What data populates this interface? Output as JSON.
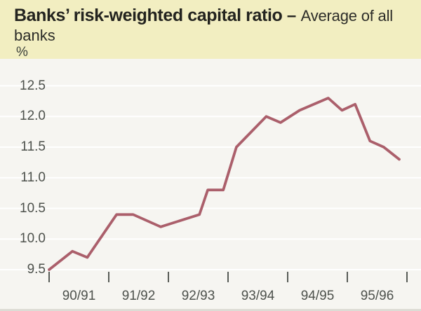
{
  "header": {
    "title_bold": "Banks’ risk-weighted capital ratio",
    "dash": "–",
    "subtitle": "Average of all",
    "title_line2": "banks",
    "unit_label": "%"
  },
  "colors": {
    "header_bg": "#f2eec1",
    "chart_bg": "#f6f5f1",
    "gridline": "#ffffff",
    "series_line": "#ab5f6b",
    "tick_mark": "#585c57",
    "axis_text": "#4d514c",
    "title_text": "#23231f"
  },
  "chart_data": {
    "type": "line",
    "title": "Banks’ risk-weighted capital ratio – Average of all banks",
    "unit": "%",
    "ylim": [
      9.5,
      12.5
    ],
    "y_ticks": [
      "12.5",
      "12.0",
      "11.5",
      "11.0",
      "10.5",
      "10.0",
      "9.5"
    ],
    "y_tick_values": [
      12.5,
      12.0,
      11.5,
      11.0,
      10.5,
      10.0,
      9.5
    ],
    "x_tick_labels": [
      "90/91",
      "91/92",
      "92/93",
      "93/94",
      "94/95",
      "95/96"
    ],
    "x_year_boundaries": 7,
    "grid": "horizontal white gridlines every 0.5, no axis frame",
    "legend": "none",
    "series": [
      {
        "name": "Average of all banks",
        "color": "#ab5f6b",
        "x_unit": "fiscal years after start of 90/91 (ticks mark year boundaries)",
        "points": [
          [
            0.0,
            9.5
          ],
          [
            0.39,
            9.8
          ],
          [
            0.64,
            9.7
          ],
          [
            1.13,
            10.4
          ],
          [
            1.41,
            10.4
          ],
          [
            1.87,
            10.2
          ],
          [
            2.52,
            10.4
          ],
          [
            2.66,
            10.8
          ],
          [
            2.92,
            10.8
          ],
          [
            3.14,
            11.5
          ],
          [
            3.64,
            12.0
          ],
          [
            3.88,
            11.9
          ],
          [
            4.2,
            12.1
          ],
          [
            4.68,
            12.3
          ],
          [
            4.91,
            12.1
          ],
          [
            5.13,
            12.2
          ],
          [
            5.38,
            11.6
          ],
          [
            5.61,
            11.5
          ],
          [
            5.87,
            11.3
          ]
        ]
      }
    ]
  }
}
